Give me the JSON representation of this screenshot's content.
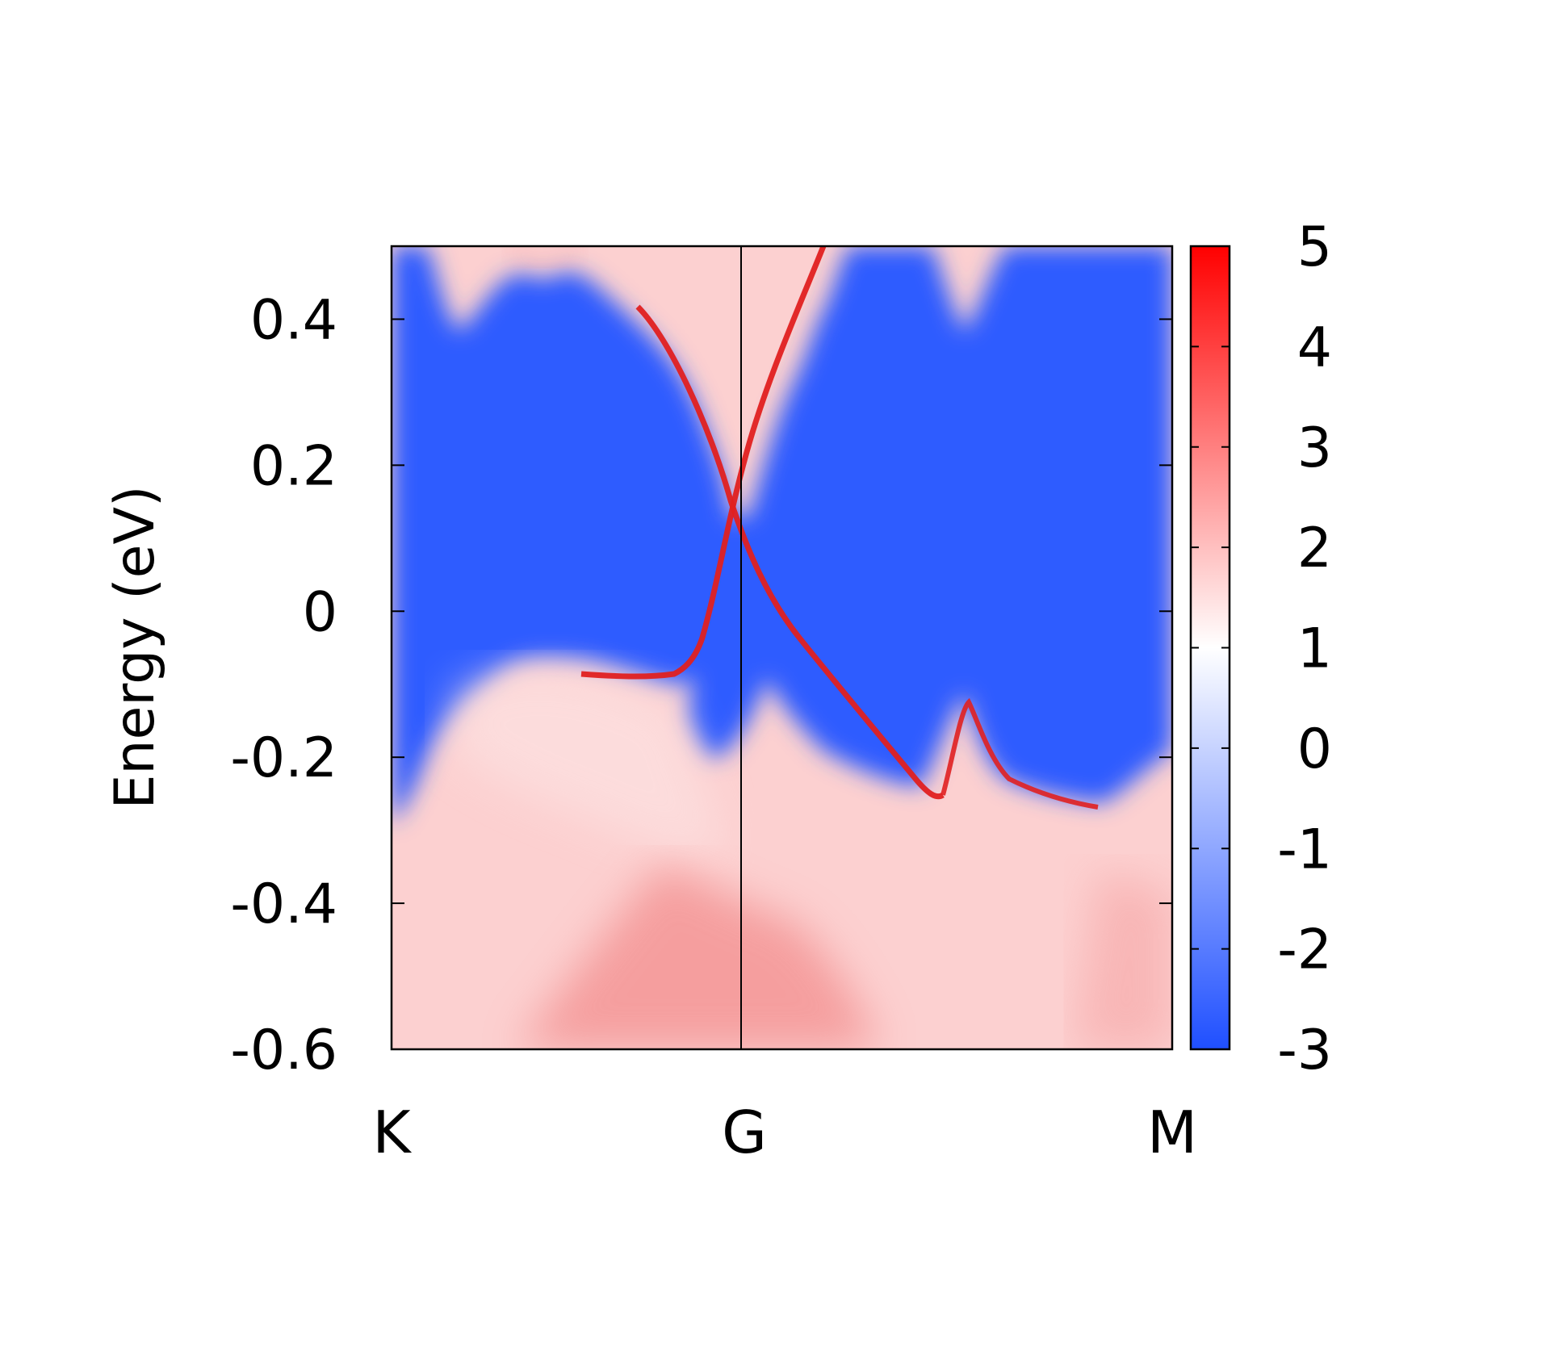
{
  "chart_data": {
    "type": "heatmap",
    "title": "",
    "xlabel": "",
    "ylabel": "Energy (eV)",
    "x_ticks": [
      {
        "label": "K",
        "k": 0
      },
      {
        "label": "G",
        "k": 0.452
      },
      {
        "label": "M",
        "k": 1
      }
    ],
    "ylim": [
      -0.6,
      0.5
    ],
    "y_ticks": [
      {
        "label": "0.4",
        "value": 0.4
      },
      {
        "label": "0.2",
        "value": 0.2
      },
      {
        "label": "0",
        "value": 0
      },
      {
        "label": "-0.2",
        "value": -0.2
      },
      {
        "label": "-0.4",
        "value": -0.4
      },
      {
        "label": "-0.6",
        "value": -0.6
      }
    ],
    "colorbar": {
      "range": [
        -3,
        5
      ],
      "ticks": [
        {
          "label": "5",
          "value": 5
        },
        {
          "label": "4",
          "value": 4
        },
        {
          "label": "3",
          "value": 3
        },
        {
          "label": "2",
          "value": 2
        },
        {
          "label": "1",
          "value": 1
        },
        {
          "label": "0",
          "value": 0
        },
        {
          "label": "-1",
          "value": -1
        },
        {
          "label": "-2",
          "value": -2
        },
        {
          "label": "-3",
          "value": -3
        }
      ],
      "colors": {
        "low": "#1f4fff",
        "mid": "#ffffff",
        "high": "#ff0000"
      }
    },
    "grid": false,
    "vertical_line_at": "G",
    "surface_states": [
      {
        "k": [
          0.36,
          0.39,
          0.42,
          0.452,
          0.48,
          0.51,
          0.55
        ],
        "E": [
          0.5,
          0.42,
          0.28,
          0.12,
          -0.02,
          -0.14,
          -0.24
        ]
      },
      {
        "k": [
          0.55,
          0.51,
          0.48,
          0.452,
          0.43,
          0.405,
          0.36,
          0.32
        ],
        "E": [
          0.5,
          0.36,
          0.24,
          0.12,
          0.0,
          -0.08,
          -0.09,
          -0.08
        ]
      },
      {
        "k": [
          0.55,
          0.6,
          0.65,
          0.68,
          0.71,
          0.75,
          0.79,
          0.84,
          0.89
        ],
        "E": [
          -0.24,
          -0.3,
          -0.26,
          -0.3,
          -0.15,
          -0.25,
          -0.28,
          -0.28,
          -0.2
        ]
      }
    ]
  }
}
